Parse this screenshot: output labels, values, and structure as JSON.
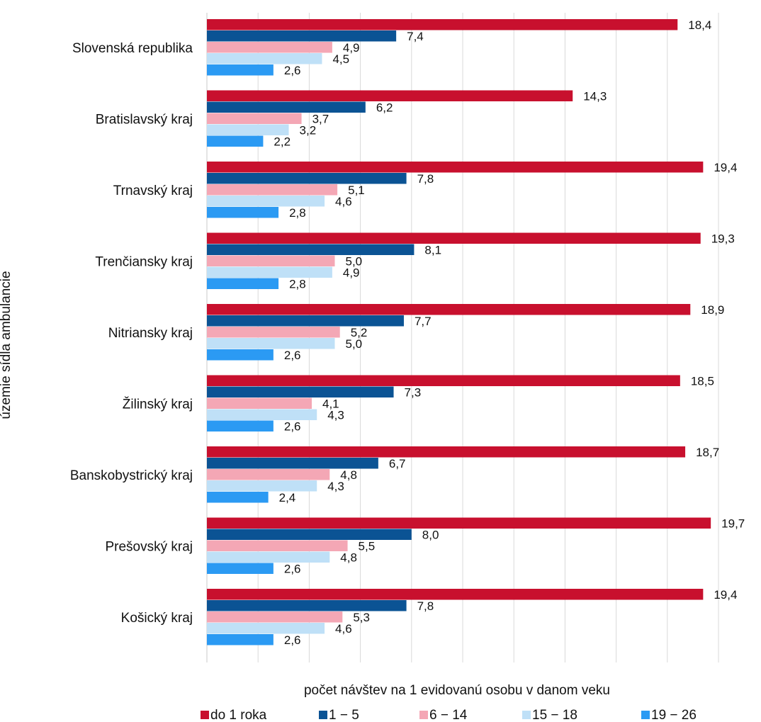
{
  "chart_data": {
    "type": "bar",
    "orientation": "horizontal",
    "xlabel": "počet návštev na 1 evidovanú osobu v danom veku",
    "ylabel": "územie sídla ambulancie",
    "xlim": [
      0,
      20
    ],
    "grid": "vertical",
    "legend": "bottom",
    "categories": [
      "Slovenská republika",
      "Bratislavský kraj",
      "Trnavský kraj",
      "Trenčiansky kraj",
      "Nitriansky kraj",
      "Žilinský kraj",
      "Banskobystrický kraj",
      "Prešovský kraj",
      "Košický kraj"
    ],
    "series": [
      {
        "name": "do 1 roka",
        "color": "#C8102E",
        "values": [
          18.4,
          14.3,
          19.4,
          19.3,
          18.9,
          18.5,
          18.7,
          19.7,
          19.4
        ],
        "labels": [
          "18,4",
          "14,3",
          "19,4",
          "19,3",
          "18,9",
          "18,5",
          "18,7",
          "19,7",
          "19,4"
        ]
      },
      {
        "name": "1 − 5",
        "color": "#0B5394",
        "values": [
          7.4,
          6.2,
          7.8,
          8.1,
          7.7,
          7.3,
          6.7,
          8.0,
          7.8
        ],
        "labels": [
          "7,4",
          "6,2",
          "7,8",
          "8,1",
          "7,7",
          "7,3",
          "6,7",
          "8,0",
          "7,8"
        ]
      },
      {
        "name": "6 − 14",
        "color": "#F4A7B5",
        "values": [
          4.9,
          3.7,
          5.1,
          5.0,
          5.2,
          4.1,
          4.8,
          5.5,
          5.3
        ],
        "labels": [
          "4,9",
          "3,7",
          "5,1",
          "5,0",
          "5,2",
          "4,1",
          "4,8",
          "5,5",
          "5,3"
        ]
      },
      {
        "name": "15 − 18",
        "color": "#BFE0F7",
        "values": [
          4.5,
          3.2,
          4.6,
          4.9,
          5.0,
          4.3,
          4.3,
          4.8,
          4.6
        ],
        "labels": [
          "4,5",
          "3,2",
          "4,6",
          "4,9",
          "5,0",
          "4,3",
          "4,3",
          "4,8",
          "4,6"
        ]
      },
      {
        "name": "19 − 26",
        "color": "#2B9AF3",
        "values": [
          2.6,
          2.2,
          2.8,
          2.8,
          2.6,
          2.6,
          2.4,
          2.6,
          2.6
        ],
        "labels": [
          "2,6",
          "2,2",
          "2,8",
          "2,8",
          "2,6",
          "2,6",
          "2,4",
          "2,6",
          "2,6"
        ]
      }
    ]
  }
}
